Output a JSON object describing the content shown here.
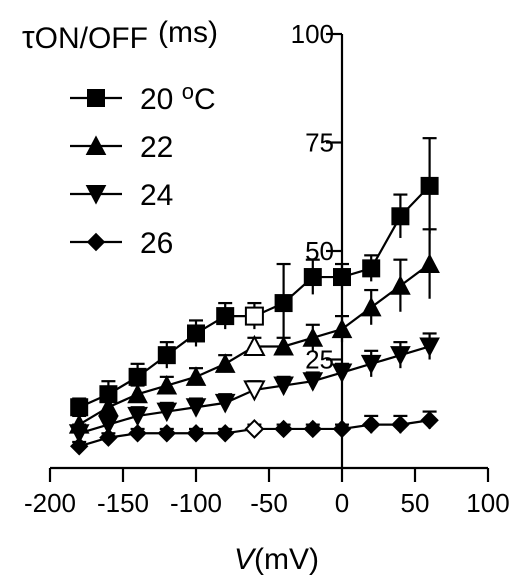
{
  "chart_data": {
    "type": "line",
    "ylabel_prefix": "τ",
    "ylabel_main": "ON/OFF",
    "ylabel_unit": "(ms)",
    "xlabel_italic": "V",
    "xlabel_rest": "(mV)",
    "xlim": [
      -200,
      100
    ],
    "ylim": [
      0,
      100
    ],
    "x_ticks": [
      -200,
      -150,
      -100,
      -50,
      0,
      50,
      100
    ],
    "y_ticks_labeled": [
      25,
      50,
      75,
      100
    ],
    "x_tick_labels": [
      "-200",
      "-150",
      "-100",
      "-50",
      "0",
      "50",
      "100"
    ],
    "y_tick_labels": [
      "25",
      "50",
      "75",
      "100"
    ],
    "legend": {
      "placement": "top-left",
      "entries": [
        "20 ",
        "22",
        "24",
        "26"
      ],
      "first_entry_superscript": "o",
      "first_entry_suffix": "C"
    },
    "series": [
      {
        "name": "20 oC",
        "marker": "square",
        "x": [
          -180,
          -160,
          -140,
          -120,
          -100,
          -80,
          -60,
          -40,
          -20,
          0,
          20,
          40,
          60
        ],
        "y": [
          14,
          17,
          21,
          26,
          31,
          35,
          35,
          38,
          44,
          44,
          46,
          58,
          65
        ],
        "err": [
          2,
          3,
          3,
          3,
          3,
          3,
          3,
          9,
          4,
          3,
          3,
          5,
          11
        ],
        "open_index": 6
      },
      {
        "name": "22",
        "marker": "triangle-up",
        "x": [
          -180,
          -160,
          -140,
          -120,
          -100,
          -80,
          -60,
          -40,
          -20,
          0,
          20,
          40,
          60
        ],
        "y": [
          10,
          14,
          17,
          19,
          21,
          24,
          28,
          28,
          30,
          32,
          37,
          42,
          47
        ],
        "err": [
          2,
          2,
          2,
          2,
          2,
          2,
          2,
          2,
          3,
          3,
          4,
          6,
          8
        ],
        "open_index": 6
      },
      {
        "name": "24",
        "marker": "triangle-down",
        "x": [
          -180,
          -160,
          -140,
          -120,
          -100,
          -80,
          -60,
          -40,
          -20,
          0,
          20,
          40,
          60
        ],
        "y": [
          8,
          10,
          12,
          13,
          14,
          15,
          18,
          19,
          20,
          22,
          24,
          26,
          28
        ],
        "err": [
          2,
          2,
          2,
          2,
          2,
          2,
          2,
          2,
          2,
          2,
          3,
          3,
          3
        ],
        "open_index": 6
      },
      {
        "name": "26",
        "marker": "diamond",
        "x": [
          -180,
          -160,
          -140,
          -120,
          -100,
          -80,
          -60,
          -40,
          -20,
          0,
          20,
          40,
          60
        ],
        "y": [
          5,
          7,
          8,
          8,
          8,
          8,
          9,
          9,
          9,
          9,
          10,
          10,
          11
        ],
        "err": [
          1,
          1,
          1,
          1,
          1,
          1,
          1,
          1,
          1,
          1,
          2,
          2,
          2
        ],
        "open_index": 6
      }
    ]
  }
}
